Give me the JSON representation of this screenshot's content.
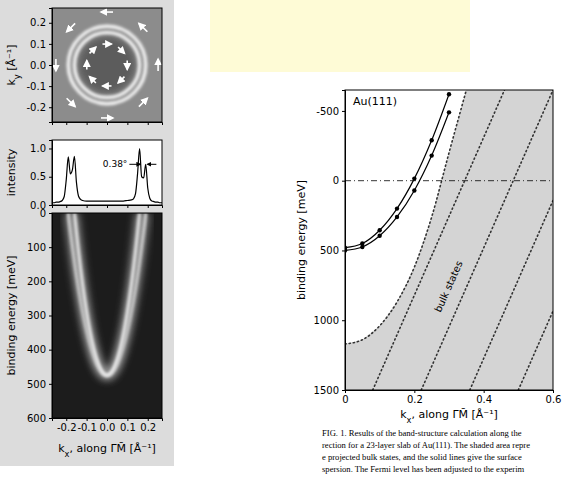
{
  "chart_data": [
    {
      "type": "map",
      "ylabel": "ky [Å⁻¹]",
      "xlim": [
        -0.27,
        0.27
      ],
      "ylim": [
        -0.27,
        0.27
      ],
      "xticks": [
        -0.2,
        -0.1,
        0,
        0.1,
        0.2
      ],
      "yticks": [
        -0.2,
        -0.1,
        {
          "value": 0,
          "label": "0.0"
        },
        0.1,
        0.2
      ],
      "tick_labels": "y",
      "radii": [
        0.16,
        0.19
      ]
    },
    {
      "type": "line",
      "ylabel": "intensity",
      "xlim": [
        -0.27,
        0.27
      ],
      "ylim": [
        0,
        1.15
      ],
      "xticks": [
        -0.2,
        -0.1,
        0,
        0.1,
        0.2
      ],
      "yticks": [
        {
          "value": 0,
          "label": "0.0"
        },
        {
          "value": 0.5,
          "label": "0.5"
        },
        {
          "value": 1,
          "label": "1.0"
        }
      ],
      "tick_labels": "y",
      "color": "#000000",
      "x": [
        -0.27,
        -0.26,
        -0.25,
        -0.24,
        -0.23,
        -0.22,
        -0.21,
        -0.2,
        -0.19,
        -0.18,
        -0.17,
        -0.16,
        -0.15,
        -0.14,
        -0.13,
        -0.12,
        -0.1,
        -0.08,
        -0.06,
        -0.04,
        -0.02,
        0,
        0.02,
        0.04,
        0.06,
        0.08,
        0.1,
        0.12,
        0.13,
        0.14,
        0.15,
        0.16,
        0.17,
        0.18,
        0.19,
        0.2,
        0.21,
        0.22,
        0.23,
        0.24,
        0.25,
        0.26,
        0.27
      ],
      "values": [
        0.04,
        0.04,
        0.05,
        0.05,
        0.06,
        0.08,
        0.15,
        0.45,
        0.85,
        0.55,
        0.62,
        0.86,
        0.4,
        0.16,
        0.1,
        0.08,
        0.07,
        0.07,
        0.07,
        0.07,
        0.07,
        0.07,
        0.07,
        0.07,
        0.07,
        0.07,
        0.08,
        0.09,
        0.11,
        0.2,
        0.55,
        1.0,
        0.5,
        0.48,
        0.72,
        0.3,
        0.12,
        0.07,
        0.06,
        0.05,
        0.05,
        0.04,
        0.04
      ],
      "annotations": [
        {
          "text": "0.38°",
          "x": 0.1,
          "y": 0.72
        }
      ]
    },
    {
      "type": "image",
      "ylabel": "binding energy [meV]",
      "xlabel": "kx, along Γ̄M̄ [Å⁻¹]",
      "xlim": [
        -0.27,
        0.27
      ],
      "ylim": [
        600,
        0
      ],
      "xticks": [
        {
          "value": -0.2,
          "label": "-0.2"
        },
        {
          "value": -0.1,
          "label": "-0.1"
        },
        {
          "value": 0,
          "label": "0.0"
        },
        {
          "value": 0.1,
          "label": "0.1"
        },
        {
          "value": 0.2,
          "label": "0.2"
        }
      ],
      "yticks": [
        0,
        100,
        200,
        300,
        400,
        500,
        600
      ],
      "series": [
        {
          "x": [
            -0.19,
            -0.15,
            -0.1,
            -0.05,
            0,
            0.05,
            0.1,
            0.15,
            0.19
          ],
          "values": [
            0,
            179,
            343,
            442,
            475,
            442,
            343,
            179,
            0
          ]
        },
        {
          "x": [
            -0.16,
            -0.15,
            -0.1,
            -0.05,
            0,
            0.05,
            0.1,
            0.15,
            0.16
          ],
          "values": [
            0,
            58,
            290,
            429,
            475,
            429,
            290,
            58,
            0
          ]
        }
      ]
    },
    {
      "type": "line",
      "title": "Au(111)",
      "ylabel": "binding energy [meV]",
      "xlabel": "kx, along Γ̄M̄ [Å⁻¹]",
      "xlim": [
        0,
        0.6
      ],
      "ylim": [
        1500,
        -650
      ],
      "xticks": [
        0,
        0.2,
        0.4,
        0.6
      ],
      "yticks": [
        -500,
        0,
        500,
        1000,
        1500
      ],
      "fermi_level": 0,
      "bulk_region": {
        "color": "#d4d4d4",
        "x": [
          0,
          0.05,
          0.1,
          0.15,
          0.2,
          0.25,
          0.3,
          0.35
        ],
        "values": [
          1170,
          1140,
          1040,
          870,
          620,
          260,
          -200,
          -650
        ]
      },
      "series": [
        {
          "type": "line",
          "color": "#000000",
          "marker": "circle",
          "line_style": "solid",
          "x": [
            0,
            0.05,
            0.1,
            0.15,
            0.2,
            0.25,
            0.3
          ],
          "values": [
            480,
            450,
            355,
            200,
            -15,
            -290,
            -620
          ]
        },
        {
          "type": "line",
          "color": "#000000",
          "marker": "circle",
          "line_style": "solid",
          "x": [
            0,
            0.05,
            0.1,
            0.15,
            0.2,
            0.25,
            0.3
          ],
          "values": [
            500,
            475,
            395,
            260,
            70,
            -180,
            -490
          ]
        },
        {
          "type": "line",
          "color": "#333333",
          "line_style": "dotted",
          "x": [
            0.08,
            0.46
          ],
          "values": [
            1500,
            -650
          ]
        },
        {
          "type": "line",
          "color": "#333333",
          "line_style": "dotted",
          "x": [
            0.22,
            0.6
          ],
          "values": [
            1500,
            -650
          ]
        },
        {
          "type": "line",
          "color": "#333333",
          "line_style": "dotted",
          "x": [
            0.36,
            0.6
          ],
          "values": [
            1500,
            142
          ]
        },
        {
          "type": "line",
          "color": "#333333",
          "line_style": "dotted",
          "x": [
            0.5,
            0.6
          ],
          "values": [
            1500,
            934
          ]
        }
      ],
      "annotations": [
        {
          "text": "bulk states",
          "x": 0.3,
          "y": 760
        }
      ],
      "caption": [
        "FIG. 1. Results of the band-structure calculation along the",
        "rection for a 23-layer slab of Au(111). The shaded area repre",
        "e projected bulk states, and the solid lines give the surface",
        "spersion. The Fermi level has been adjusted to the experim"
      ]
    }
  ]
}
